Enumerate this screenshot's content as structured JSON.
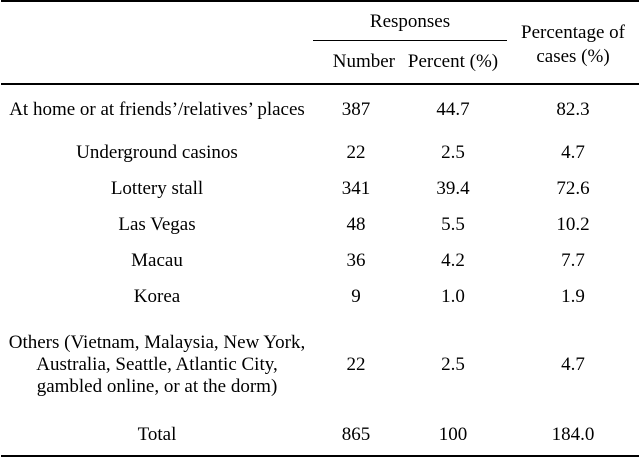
{
  "table": {
    "header": {
      "group_label": "Responses",
      "number_label": "Number",
      "percent_label": "Percent (%)",
      "cases_label": "Percentage of cases (%)"
    },
    "rows": [
      {
        "label": "At home or at friends’/relatives’ places",
        "number": "387",
        "percent": "44.7",
        "cases": "82.3"
      },
      {
        "label": "Underground casinos",
        "number": "22",
        "percent": "2.5",
        "cases": "4.7"
      },
      {
        "label": "Lottery stall",
        "number": "341",
        "percent": "39.4",
        "cases": "72.6"
      },
      {
        "label": "Las Vegas",
        "number": "48",
        "percent": "5.5",
        "cases": "10.2"
      },
      {
        "label": "Macau",
        "number": "36",
        "percent": "4.2",
        "cases": "7.7"
      },
      {
        "label": "Korea",
        "number": "9",
        "percent": "1.0",
        "cases": "1.9"
      },
      {
        "label": "Others (Vietnam, Malaysia, New York, Australia, Seattle, Atlantic City, gambled online, or at the dorm)",
        "number": "22",
        "percent": "2.5",
        "cases": "4.7"
      },
      {
        "label": "Total",
        "number": "865",
        "percent": "100",
        "cases": "184.0"
      }
    ]
  }
}
